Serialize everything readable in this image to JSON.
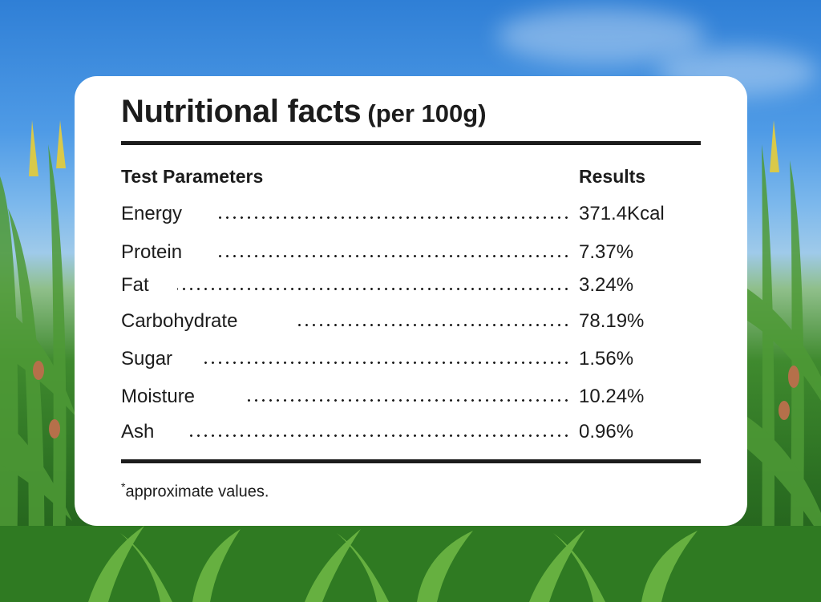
{
  "title": "Nutritional facts",
  "subtitle": "(per 100g)",
  "table": {
    "header_param": "Test Parameters",
    "header_result": "Results",
    "rows": [
      {
        "param": "Energy",
        "result": "371.4Kcal"
      },
      {
        "param": "Protein",
        "result": "7.37%"
      },
      {
        "param": "Fat",
        "result": "3.24%"
      },
      {
        "param": "Carbohydrate",
        "result": "78.19%"
      },
      {
        "param": "Sugar",
        "result": "1.56%"
      },
      {
        "param": "Moisture",
        "result": "10.24%"
      },
      {
        "param": "Ash",
        "result": "0.96%"
      }
    ]
  },
  "footnote": {
    "mark": "*",
    "text": "approximate values."
  },
  "colors": {
    "text": "#1c1c1c",
    "card": "#ffffff",
    "sky": "#4f9be6",
    "leaf": "#3f8a2e"
  }
}
